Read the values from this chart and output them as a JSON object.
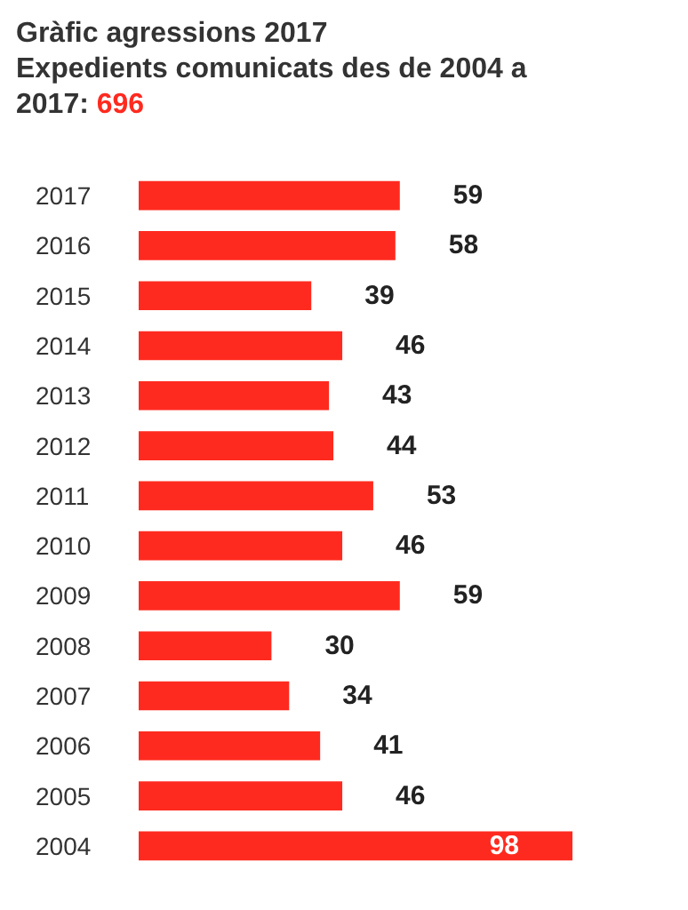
{
  "chart_data": {
    "type": "bar",
    "orientation": "horizontal",
    "title": "Gràfic agressions 2017",
    "subtitle": "Expedients comunicats des de 2004 a 2017: 696",
    "categories": [
      "2017",
      "2016",
      "2015",
      "2014",
      "2013",
      "2012",
      "2011",
      "2010",
      "2009",
      "2008",
      "2007",
      "2006",
      "2005",
      "2004"
    ],
    "values": [
      59,
      58,
      39,
      46,
      43,
      44,
      53,
      46,
      59,
      30,
      34,
      41,
      46,
      98
    ],
    "color": "#ff2a1f",
    "data_labels": true
  }
}
